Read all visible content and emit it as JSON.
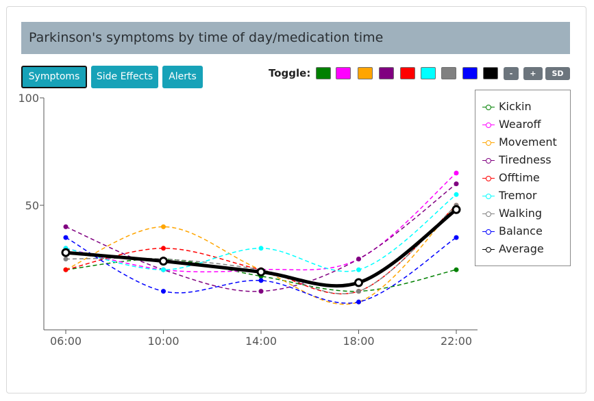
{
  "title": "Parkinson's symptoms by time of day/medication time",
  "tabs": [
    {
      "label": "Symptoms",
      "active": true
    },
    {
      "label": "Side Effects",
      "active": false
    },
    {
      "label": "Alerts",
      "active": false
    }
  ],
  "toggle": {
    "label": "Toggle:",
    "colors": [
      "#008000",
      "#ff00ff",
      "#ffa500",
      "#800080",
      "#ff0000",
      "#00ffff",
      "#808080",
      "#0000ff",
      "#000000"
    ],
    "minus": "-",
    "plus": "+",
    "sd": "SD"
  },
  "chart_data": {
    "type": "line",
    "title": "",
    "xlabel": "",
    "ylabel": "",
    "categories": [
      "06:00",
      "10:00",
      "14:00",
      "18:00",
      "22:00"
    ],
    "y_ticks": [
      "50",
      "100"
    ],
    "ylim": [
      -50,
      100
    ],
    "legend_position": "right",
    "series": [
      {
        "name": "Kickin",
        "color": "#008000",
        "values": [
          20,
          25,
          17,
          10,
          20
        ]
      },
      {
        "name": "Wearoff",
        "color": "#ff00ff",
        "values": [
          30,
          20,
          20,
          25,
          65
        ]
      },
      {
        "name": "Movement",
        "color": "#ffa500",
        "values": [
          20,
          40,
          20,
          5,
          50
        ]
      },
      {
        "name": "Tiredness",
        "color": "#800080",
        "values": [
          40,
          20,
          10,
          25,
          60
        ]
      },
      {
        "name": "Offtime",
        "color": "#ff0000",
        "values": [
          20,
          30,
          20,
          10,
          50
        ]
      },
      {
        "name": "Tremor",
        "color": "#00ffff",
        "values": [
          30,
          20,
          30,
          20,
          55
        ]
      },
      {
        "name": "Walking",
        "color": "#808080",
        "values": [
          25,
          25,
          20,
          10,
          50
        ]
      },
      {
        "name": "Balance",
        "color": "#0000ff",
        "values": [
          35,
          10,
          15,
          5,
          35
        ]
      },
      {
        "name": "Average",
        "color": "#000000",
        "values": [
          28,
          24,
          19,
          14,
          48
        ]
      }
    ]
  }
}
